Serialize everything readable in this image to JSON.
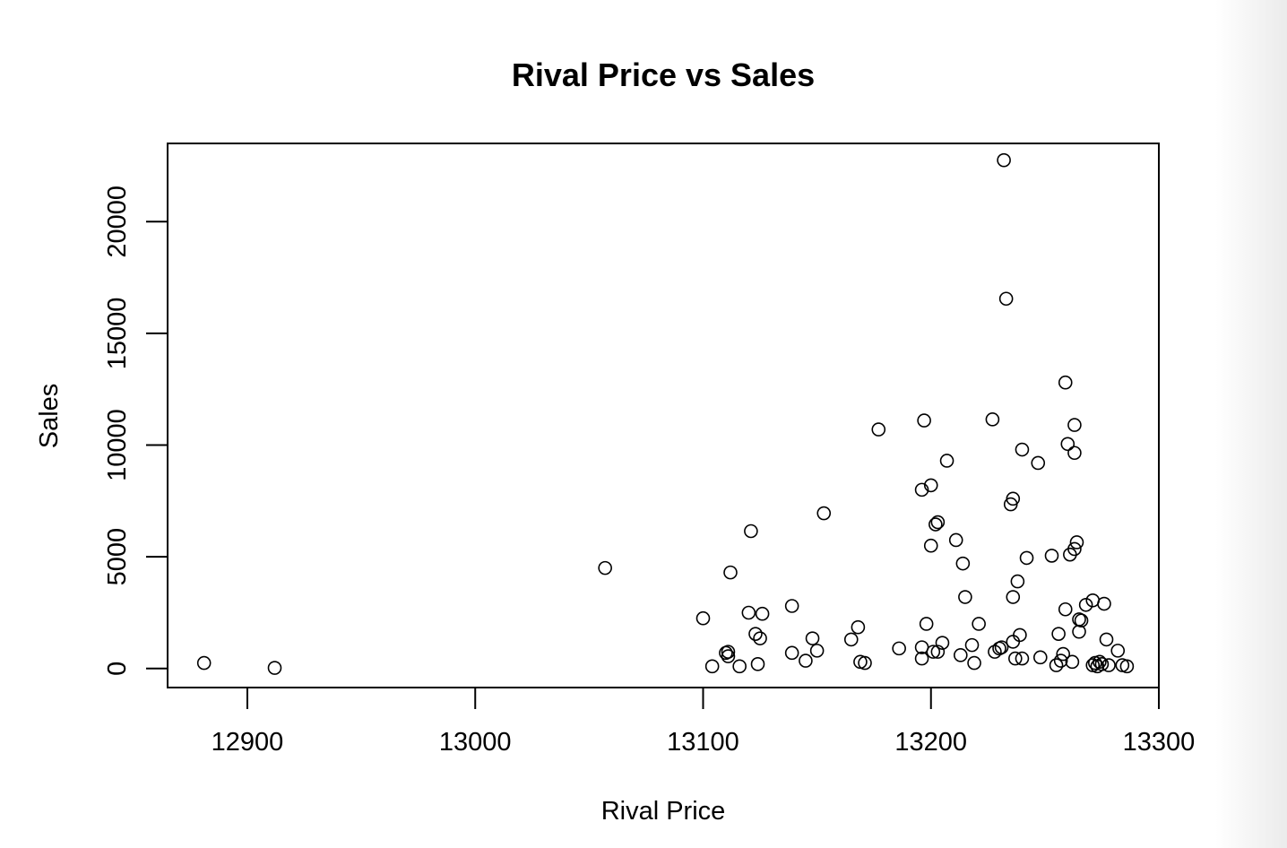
{
  "chart_data": {
    "type": "scatter",
    "title": "Rival Price vs Sales",
    "xlabel": "Rival Price",
    "ylabel": "Sales",
    "xlim": [
      12865,
      13300
    ],
    "ylim": [
      -850,
      23500
    ],
    "x_ticks": [
      12900,
      13000,
      13100,
      13200,
      13300
    ],
    "y_ticks": [
      0,
      5000,
      10000,
      15000,
      20000
    ],
    "x_tick_labels": [
      "12900",
      "13000",
      "13100",
      "13200",
      "13300"
    ],
    "y_tick_labels": [
      "0",
      "5000",
      "10000",
      "15000",
      "20000"
    ],
    "grid": false,
    "marker": "open-circle",
    "points": [
      [
        12881,
        250
      ],
      [
        12912,
        30
      ],
      [
        13057,
        4500
      ],
      [
        13100,
        2250
      ],
      [
        13104,
        100
      ],
      [
        13110,
        700
      ],
      [
        13111,
        750
      ],
      [
        13111,
        550
      ],
      [
        13112,
        4300
      ],
      [
        13116,
        100
      ],
      [
        13120,
        2500
      ],
      [
        13121,
        6150
      ],
      [
        13123,
        1550
      ],
      [
        13124,
        200
      ],
      [
        13125,
        1350
      ],
      [
        13126,
        2450
      ],
      [
        13139,
        2800
      ],
      [
        13139,
        700
      ],
      [
        13145,
        350
      ],
      [
        13148,
        1350
      ],
      [
        13150,
        800
      ],
      [
        13153,
        6950
      ],
      [
        13165,
        1300
      ],
      [
        13168,
        1850
      ],
      [
        13169,
        300
      ],
      [
        13171,
        250
      ],
      [
        13177,
        10700
      ],
      [
        13186,
        900
      ],
      [
        13196,
        8000
      ],
      [
        13196,
        950
      ],
      [
        13196,
        450
      ],
      [
        13197,
        11100
      ],
      [
        13198,
        2000
      ],
      [
        13200,
        8200
      ],
      [
        13200,
        5500
      ],
      [
        13201,
        750
      ],
      [
        13202,
        6450
      ],
      [
        13203,
        6550
      ],
      [
        13203,
        750
      ],
      [
        13205,
        1150
      ],
      [
        13207,
        9300
      ],
      [
        13211,
        5750
      ],
      [
        13213,
        600
      ],
      [
        13214,
        4700
      ],
      [
        13215,
        3200
      ],
      [
        13218,
        1050
      ],
      [
        13219,
        250
      ],
      [
        13221,
        2000
      ],
      [
        13227,
        11150
      ],
      [
        13228,
        750
      ],
      [
        13230,
        900
      ],
      [
        13231,
        950
      ],
      [
        13232,
        22750
      ],
      [
        13233,
        16550
      ],
      [
        13235,
        7350
      ],
      [
        13236,
        7600
      ],
      [
        13236,
        3200
      ],
      [
        13236,
        1200
      ],
      [
        13237,
        450
      ],
      [
        13238,
        3900
      ],
      [
        13239,
        1500
      ],
      [
        13240,
        9800
      ],
      [
        13240,
        450
      ],
      [
        13242,
        4950
      ],
      [
        13247,
        9200
      ],
      [
        13248,
        500
      ],
      [
        13253,
        5050
      ],
      [
        13255,
        150
      ],
      [
        13256,
        1550
      ],
      [
        13257,
        350
      ],
      [
        13258,
        650
      ],
      [
        13259,
        12800
      ],
      [
        13259,
        2650
      ],
      [
        13260,
        10050
      ],
      [
        13261,
        5100
      ],
      [
        13262,
        300
      ],
      [
        13263,
        9650
      ],
      [
        13263,
        10900
      ],
      [
        13263,
        5350
      ],
      [
        13264,
        5650
      ],
      [
        13265,
        2200
      ],
      [
        13265,
        1650
      ],
      [
        13266,
        2150
      ],
      [
        13268,
        2850
      ],
      [
        13271,
        3050
      ],
      [
        13271,
        150
      ],
      [
        13272,
        250
      ],
      [
        13273,
        100
      ],
      [
        13274,
        300
      ],
      [
        13275,
        200
      ],
      [
        13276,
        2900
      ],
      [
        13277,
        1300
      ],
      [
        13278,
        150
      ],
      [
        13282,
        800
      ],
      [
        13284,
        150
      ],
      [
        13286,
        100
      ]
    ]
  }
}
